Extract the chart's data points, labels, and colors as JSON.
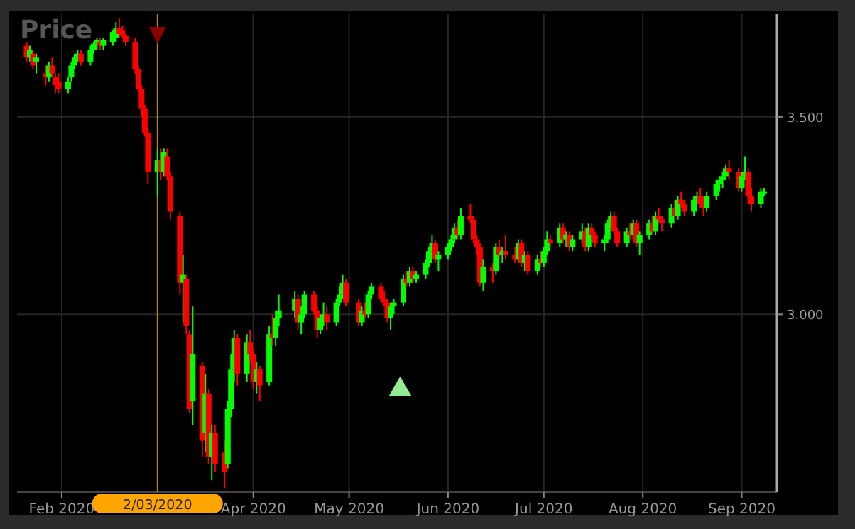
{
  "chart_data": {
    "type": "candlestick",
    "title": "Price",
    "x": [
      "2020-01-21",
      "2020-01-22",
      "2020-01-23",
      "2020-01-24",
      "2020-01-27",
      "2020-01-28",
      "2020-01-29",
      "2020-01-30",
      "2020-01-31",
      "2020-02-03",
      "2020-02-04",
      "2020-02-05",
      "2020-02-06",
      "2020-02-07",
      "2020-02-10",
      "2020-02-11",
      "2020-02-12",
      "2020-02-13",
      "2020-02-14",
      "2020-02-17",
      "2020-02-18",
      "2020-02-19",
      "2020-02-20",
      "2020-02-21",
      "2020-02-24",
      "2020-02-25",
      "2020-02-26",
      "2020-02-27",
      "2020-02-28",
      "2020-03-02",
      "2020-03-03",
      "2020-03-04",
      "2020-03-05",
      "2020-03-06",
      "2020-03-09",
      "2020-03-10",
      "2020-03-11",
      "2020-03-12",
      "2020-03-13",
      "2020-03-16",
      "2020-03-17",
      "2020-03-18",
      "2020-03-19",
      "2020-03-20",
      "2020-03-23",
      "2020-03-24",
      "2020-03-25",
      "2020-03-26",
      "2020-03-27",
      "2020-03-30",
      "2020-03-31",
      "2020-04-01",
      "2020-04-02",
      "2020-04-03",
      "2020-04-06",
      "2020-04-07",
      "2020-04-08",
      "2020-04-09",
      "2020-04-14",
      "2020-04-15",
      "2020-04-16",
      "2020-04-17",
      "2020-04-20",
      "2020-04-21",
      "2020-04-22",
      "2020-04-23",
      "2020-04-24",
      "2020-04-27",
      "2020-04-28",
      "2020-04-29",
      "2020-04-30",
      "2020-05-04",
      "2020-05-05",
      "2020-05-06",
      "2020-05-07",
      "2020-05-08",
      "2020-05-11",
      "2020-05-12",
      "2020-05-13",
      "2020-05-14",
      "2020-05-15",
      "2020-05-18",
      "2020-05-19",
      "2020-05-20",
      "2020-05-21",
      "2020-05-22",
      "2020-05-25",
      "2020-05-26",
      "2020-05-27",
      "2020-05-28",
      "2020-05-29",
      "2020-06-01",
      "2020-06-02",
      "2020-06-03",
      "2020-06-04",
      "2020-06-05",
      "2020-06-08",
      "2020-06-09",
      "2020-06-10",
      "2020-06-11",
      "2020-06-12",
      "2020-06-15",
      "2020-06-16",
      "2020-06-17",
      "2020-06-18",
      "2020-06-19",
      "2020-06-22",
      "2020-06-23",
      "2020-06-24",
      "2020-06-25",
      "2020-06-26",
      "2020-06-29",
      "2020-06-30",
      "2020-07-01",
      "2020-07-02",
      "2020-07-03",
      "2020-07-06",
      "2020-07-07",
      "2020-07-08",
      "2020-07-09",
      "2020-07-10",
      "2020-07-13",
      "2020-07-14",
      "2020-07-15",
      "2020-07-16",
      "2020-07-17",
      "2020-07-20",
      "2020-07-21",
      "2020-07-22",
      "2020-07-23",
      "2020-07-24",
      "2020-07-27",
      "2020-07-28",
      "2020-07-29",
      "2020-07-30",
      "2020-07-31",
      "2020-08-03",
      "2020-08-04",
      "2020-08-05",
      "2020-08-06",
      "2020-08-07",
      "2020-08-10",
      "2020-08-11",
      "2020-08-12",
      "2020-08-13",
      "2020-08-14",
      "2020-08-17",
      "2020-08-18",
      "2020-08-19",
      "2020-08-20",
      "2020-08-21",
      "2020-08-24",
      "2020-08-25",
      "2020-08-26",
      "2020-08-27",
      "2020-08-28",
      "2020-08-31",
      "2020-09-01",
      "2020-09-02",
      "2020-09-03",
      "2020-09-04",
      "2020-09-07",
      "2020-09-08"
    ],
    "ohlc": [
      [
        3680,
        3690,
        3640,
        3650
      ],
      [
        3650,
        3680,
        3640,
        3670
      ],
      [
        3660,
        3670,
        3620,
        3630
      ],
      [
        3640,
        3660,
        3610,
        3650
      ],
      [
        3610,
        3630,
        3580,
        3600
      ],
      [
        3600,
        3640,
        3590,
        3630
      ],
      [
        3630,
        3650,
        3600,
        3610
      ],
      [
        3600,
        3610,
        3560,
        3580
      ],
      [
        3590,
        3610,
        3560,
        3570
      ],
      [
        3570,
        3600,
        3560,
        3590
      ],
      [
        3600,
        3640,
        3590,
        3630
      ],
      [
        3630,
        3660,
        3620,
        3650
      ],
      [
        3650,
        3670,
        3640,
        3660
      ],
      [
        3660,
        3670,
        3630,
        3640
      ],
      [
        3640,
        3680,
        3630,
        3670
      ],
      [
        3670,
        3690,
        3660,
        3685
      ],
      [
        3685,
        3700,
        3670,
        3695
      ],
      [
        3690,
        3700,
        3670,
        3680
      ],
      [
        3680,
        3700,
        3670,
        3695
      ],
      [
        3690,
        3720,
        3680,
        3715
      ],
      [
        3700,
        3740,
        3690,
        3725
      ],
      [
        3725,
        3750,
        3700,
        3710
      ],
      [
        3720,
        3730,
        3700,
        3705
      ],
      [
        3705,
        3710,
        3680,
        3690
      ],
      [
        3690,
        3700,
        3610,
        3620
      ],
      [
        3620,
        3630,
        3560,
        3570
      ],
      [
        3570,
        3580,
        3500,
        3520
      ],
      [
        3520,
        3530,
        3450,
        3460
      ],
      [
        3460,
        3470,
        3330,
        3360
      ],
      [
        3360,
        3420,
        3300,
        3390
      ],
      [
        3390,
        3420,
        3340,
        3360
      ],
      [
        3360,
        3420,
        3350,
        3410
      ],
      [
        3400,
        3420,
        3340,
        3350
      ],
      [
        3350,
        3360,
        3240,
        3260
      ],
      [
        3250,
        3260,
        3050,
        3080
      ],
      [
        3080,
        3150,
        2980,
        3100
      ],
      [
        3090,
        3100,
        2950,
        2970
      ],
      [
        2950,
        2960,
        2750,
        2760
      ],
      [
        2780,
        3020,
        2720,
        2900
      ],
      [
        2870,
        2880,
        2640,
        2680
      ],
      [
        2700,
        2850,
        2650,
        2800
      ],
      [
        2800,
        2810,
        2620,
        2640
      ],
      [
        2640,
        2720,
        2580,
        2700
      ],
      [
        2700,
        2720,
        2600,
        2620
      ],
      [
        2650,
        2680,
        2560,
        2600
      ],
      [
        2620,
        2780,
        2610,
        2760
      ],
      [
        2760,
        2900,
        2740,
        2860
      ],
      [
        2860,
        2960,
        2830,
        2940
      ],
      [
        2940,
        2950,
        2820,
        2850
      ],
      [
        2850,
        2950,
        2830,
        2930
      ],
      [
        2930,
        2960,
        2880,
        2900
      ],
      [
        2900,
        2910,
        2810,
        2830
      ],
      [
        2830,
        2880,
        2800,
        2860
      ],
      [
        2860,
        2870,
        2780,
        2820
      ],
      [
        2830,
        2970,
        2820,
        2950
      ],
      [
        2950,
        3000,
        2920,
        2940
      ],
      [
        2940,
        3010,
        2920,
        2990
      ],
      [
        2990,
        3050,
        2970,
        3010
      ],
      [
        3010,
        3060,
        2990,
        3040
      ],
      [
        3040,
        3050,
        2960,
        2980
      ],
      [
        2980,
        3020,
        2950,
        3000
      ],
      [
        3000,
        3060,
        2990,
        3050
      ],
      [
        3050,
        3060,
        3000,
        3010
      ],
      [
        3010,
        3020,
        2940,
        2960
      ],
      [
        2960,
        3000,
        2950,
        2990
      ],
      [
        2990,
        3030,
        2970,
        3000
      ],
      [
        3000,
        3020,
        2960,
        2980
      ],
      [
        2980,
        3040,
        2970,
        3030
      ],
      [
        3030,
        3070,
        3020,
        3050
      ],
      [
        3050,
        3100,
        3040,
        3080
      ],
      [
        3080,
        3090,
        3020,
        3030
      ],
      [
        3030,
        3040,
        2970,
        2980
      ],
      [
        2980,
        3020,
        2970,
        3010
      ],
      [
        3010,
        3030,
        2990,
        3000
      ],
      [
        3000,
        3060,
        2990,
        3050
      ],
      [
        3050,
        3080,
        3040,
        3070
      ],
      [
        3070,
        3080,
        3030,
        3040
      ],
      [
        3040,
        3060,
        3020,
        3030
      ],
      [
        3030,
        3040,
        2980,
        2990
      ],
      [
        2990,
        3030,
        2960,
        3020
      ],
      [
        3020,
        3040,
        3000,
        3030
      ],
      [
        3030,
        3100,
        3020,
        3090
      ],
      [
        3090,
        3110,
        3070,
        3080
      ],
      [
        3080,
        3120,
        3070,
        3110
      ],
      [
        3110,
        3120,
        3080,
        3090
      ],
      [
        3090,
        3110,
        3080,
        3100
      ],
      [
        3100,
        3140,
        3090,
        3130
      ],
      [
        3130,
        3170,
        3120,
        3160
      ],
      [
        3160,
        3200,
        3150,
        3180
      ],
      [
        3180,
        3190,
        3130,
        3140
      ],
      [
        3140,
        3160,
        3110,
        3150
      ],
      [
        3150,
        3180,
        3140,
        3170
      ],
      [
        3170,
        3200,
        3160,
        3190
      ],
      [
        3190,
        3230,
        3180,
        3220
      ],
      [
        3220,
        3240,
        3190,
        3200
      ],
      [
        3200,
        3270,
        3190,
        3250
      ],
      [
        3250,
        3280,
        3230,
        3240
      ],
      [
        3240,
        3250,
        3180,
        3190
      ],
      [
        3190,
        3200,
        3150,
        3170
      ],
      [
        3170,
        3180,
        3070,
        3080
      ],
      [
        3080,
        3140,
        3060,
        3120
      ],
      [
        3120,
        3130,
        3080,
        3110
      ],
      [
        3110,
        3180,
        3100,
        3170
      ],
      [
        3170,
        3190,
        3140,
        3150
      ],
      [
        3150,
        3170,
        3130,
        3160
      ],
      [
        3160,
        3200,
        3140,
        3150
      ],
      [
        3150,
        3170,
        3130,
        3140
      ],
      [
        3140,
        3190,
        3130,
        3180
      ],
      [
        3180,
        3190,
        3120,
        3130
      ],
      [
        3130,
        3160,
        3110,
        3150
      ],
      [
        3150,
        3160,
        3100,
        3110
      ],
      [
        3110,
        3150,
        3100,
        3140
      ],
      [
        3140,
        3160,
        3120,
        3130
      ],
      [
        3130,
        3170,
        3120,
        3160
      ],
      [
        3160,
        3210,
        3150,
        3190
      ],
      [
        3190,
        3200,
        3170,
        3180
      ],
      [
        3180,
        3230,
        3170,
        3220
      ],
      [
        3220,
        3230,
        3180,
        3190
      ],
      [
        3190,
        3210,
        3170,
        3200
      ],
      [
        3200,
        3210,
        3160,
        3170
      ],
      [
        3170,
        3200,
        3160,
        3190
      ],
      [
        3190,
        3230,
        3180,
        3210
      ],
      [
        3210,
        3220,
        3160,
        3170
      ],
      [
        3170,
        3230,
        3160,
        3220
      ],
      [
        3220,
        3230,
        3190,
        3200
      ],
      [
        3200,
        3210,
        3170,
        3180
      ],
      [
        3180,
        3200,
        3160,
        3190
      ],
      [
        3190,
        3240,
        3180,
        3230
      ],
      [
        3230,
        3260,
        3220,
        3250
      ],
      [
        3250,
        3260,
        3200,
        3210
      ],
      [
        3210,
        3220,
        3170,
        3180
      ],
      [
        3180,
        3220,
        3170,
        3210
      ],
      [
        3210,
        3230,
        3190,
        3200
      ],
      [
        3200,
        3240,
        3190,
        3230
      ],
      [
        3230,
        3240,
        3170,
        3180
      ],
      [
        3180,
        3210,
        3150,
        3200
      ],
      [
        3200,
        3240,
        3190,
        3230
      ],
      [
        3230,
        3250,
        3200,
        3210
      ],
      [
        3210,
        3260,
        3200,
        3250
      ],
      [
        3250,
        3270,
        3230,
        3240
      ],
      [
        3240,
        3250,
        3210,
        3230
      ],
      [
        3230,
        3280,
        3220,
        3270
      ],
      [
        3270,
        3290,
        3240,
        3250
      ],
      [
        3250,
        3300,
        3240,
        3290
      ],
      [
        3290,
        3310,
        3270,
        3280
      ],
      [
        3280,
        3290,
        3250,
        3260
      ],
      [
        3260,
        3300,
        3250,
        3290
      ],
      [
        3290,
        3310,
        3280,
        3300
      ],
      [
        3300,
        3320,
        3270,
        3280
      ],
      [
        3280,
        3300,
        3250,
        3270
      ],
      [
        3270,
        3310,
        3260,
        3300
      ],
      [
        3300,
        3340,
        3290,
        3330
      ],
      [
        3330,
        3350,
        3310,
        3340
      ],
      [
        3340,
        3360,
        3320,
        3350
      ],
      [
        3350,
        3380,
        3340,
        3370
      ],
      [
        3370,
        3390,
        3340,
        3360
      ],
      [
        3360,
        3370,
        3310,
        3320
      ],
      [
        3320,
        3360,
        3310,
        3350
      ],
      [
        3350,
        3400,
        3340,
        3360
      ],
      [
        3360,
        3370,
        3280,
        3300
      ],
      [
        3300,
        3320,
        3260,
        3280
      ],
      [
        3280,
        3320,
        3270,
        3310
      ],
      [
        3310,
        3320,
        3300,
        3310
      ]
    ],
    "colors": [
      "#ff0000",
      "#00ff00",
      "#ff0000",
      "#00ff00",
      "#ff0000",
      "#00ff00",
      "#ff0000",
      "#ff0000",
      "#ff0000",
      "#00ff00",
      "#00ff00",
      "#00ff00",
      "#00ff00",
      "#ff0000",
      "#00ff00",
      "#00ff00",
      "#00ff00",
      "#ff0000",
      "#00ff00",
      "#00ff00",
      "#00ff00",
      "#ff0000",
      "#ff0000",
      "#ff0000",
      "#ff0000",
      "#ff0000",
      "#ff0000",
      "#ff0000",
      "#ff0000",
      "#00ff00",
      "#ff0000",
      "#00ff00",
      "#ff0000",
      "#ff0000",
      "#ff0000",
      "#00ff00",
      "#ff0000",
      "#ff0000",
      "#00ff00",
      "#ff0000",
      "#00ff00",
      "#ff0000",
      "#00ff00",
      "#ff0000",
      "#ff0000",
      "#00ff00",
      "#00ff00",
      "#00ff00",
      "#ff0000",
      "#00ff00",
      "#ff0000",
      "#ff0000",
      "#00ff00",
      "#ff0000",
      "#00ff00",
      "#ff0000",
      "#00ff00",
      "#00ff00",
      "#00ff00",
      "#ff0000",
      "#00ff00",
      "#00ff00",
      "#ff0000",
      "#ff0000",
      "#00ff00",
      "#00ff00",
      "#ff0000",
      "#00ff00",
      "#00ff00",
      "#00ff00",
      "#ff0000",
      "#ff0000",
      "#00ff00",
      "#ff0000",
      "#00ff00",
      "#00ff00",
      "#ff0000",
      "#ff0000",
      "#ff0000",
      "#00ff00",
      "#00ff00",
      "#00ff00",
      "#ff0000",
      "#00ff00",
      "#ff0000",
      "#00ff00",
      "#00ff00",
      "#00ff00",
      "#00ff00",
      "#ff0000",
      "#00ff00",
      "#00ff00",
      "#00ff00",
      "#00ff00",
      "#ff0000",
      "#00ff00",
      "#ff0000",
      "#ff0000",
      "#ff0000",
      "#ff0000",
      "#00ff00",
      "#ff0000",
      "#00ff00",
      "#ff0000",
      "#00ff00",
      "#ff0000",
      "#ff0000",
      "#00ff00",
      "#ff0000",
      "#00ff00",
      "#ff0000",
      "#00ff00",
      "#ff0000",
      "#00ff00",
      "#00ff00",
      "#ff0000",
      "#00ff00",
      "#ff0000",
      "#00ff00",
      "#ff0000",
      "#00ff00",
      "#00ff00",
      "#ff0000",
      "#00ff00",
      "#ff0000",
      "#ff0000",
      "#00ff00",
      "#00ff00",
      "#00ff00",
      "#ff0000",
      "#ff0000",
      "#00ff00",
      "#ff0000",
      "#00ff00",
      "#ff0000",
      "#00ff00",
      "#00ff00",
      "#ff0000",
      "#00ff00",
      "#ff0000",
      "#ff0000",
      "#00ff00",
      "#ff0000",
      "#00ff00",
      "#ff0000",
      "#ff0000",
      "#00ff00",
      "#00ff00",
      "#ff0000",
      "#ff0000",
      "#00ff00",
      "#00ff00",
      "#00ff00",
      "#00ff00",
      "#00ff00",
      "#ff0000",
      "#ff0000",
      "#00ff00",
      "#00ff00",
      "#ff0000",
      "#ff0000",
      "#00ff00",
      "#00ff00"
    ],
    "series": [
      {
        "type": "scatter",
        "x": [
          "2020-05-17"
        ],
        "values": [
          2810
        ],
        "color": "#90ee90",
        "marker": "triangle"
      }
    ],
    "xlim": [
      "2020-01-18",
      "2020-09-12"
    ],
    "xticks": [
      {
        "value": "2020-02-01",
        "label": "Feb 2020"
      },
      {
        "value": "2020-04-01",
        "label": "Apr 2020"
      },
      {
        "value": "2020-05-01",
        "label": "May 2020"
      },
      {
        "value": "2020-06-01",
        "label": "Jun 2020"
      },
      {
        "value": "2020-07-01",
        "label": "Jul 2020"
      },
      {
        "value": "2020-08-01",
        "label": "Aug 2020"
      },
      {
        "value": "2020-09-01",
        "label": "Sep 2020"
      }
    ],
    "ylim": [
      2550,
      3760
    ],
    "yticks": [
      {
        "value": 3000,
        "label": "3.000"
      },
      {
        "value": 3500,
        "label": "3.500"
      }
    ],
    "grid": true,
    "ref_lines": [
      {
        "axis": "x",
        "value": "2020-03-02",
        "label": "2/03/2020",
        "color": "#b8860b"
      }
    ]
  }
}
